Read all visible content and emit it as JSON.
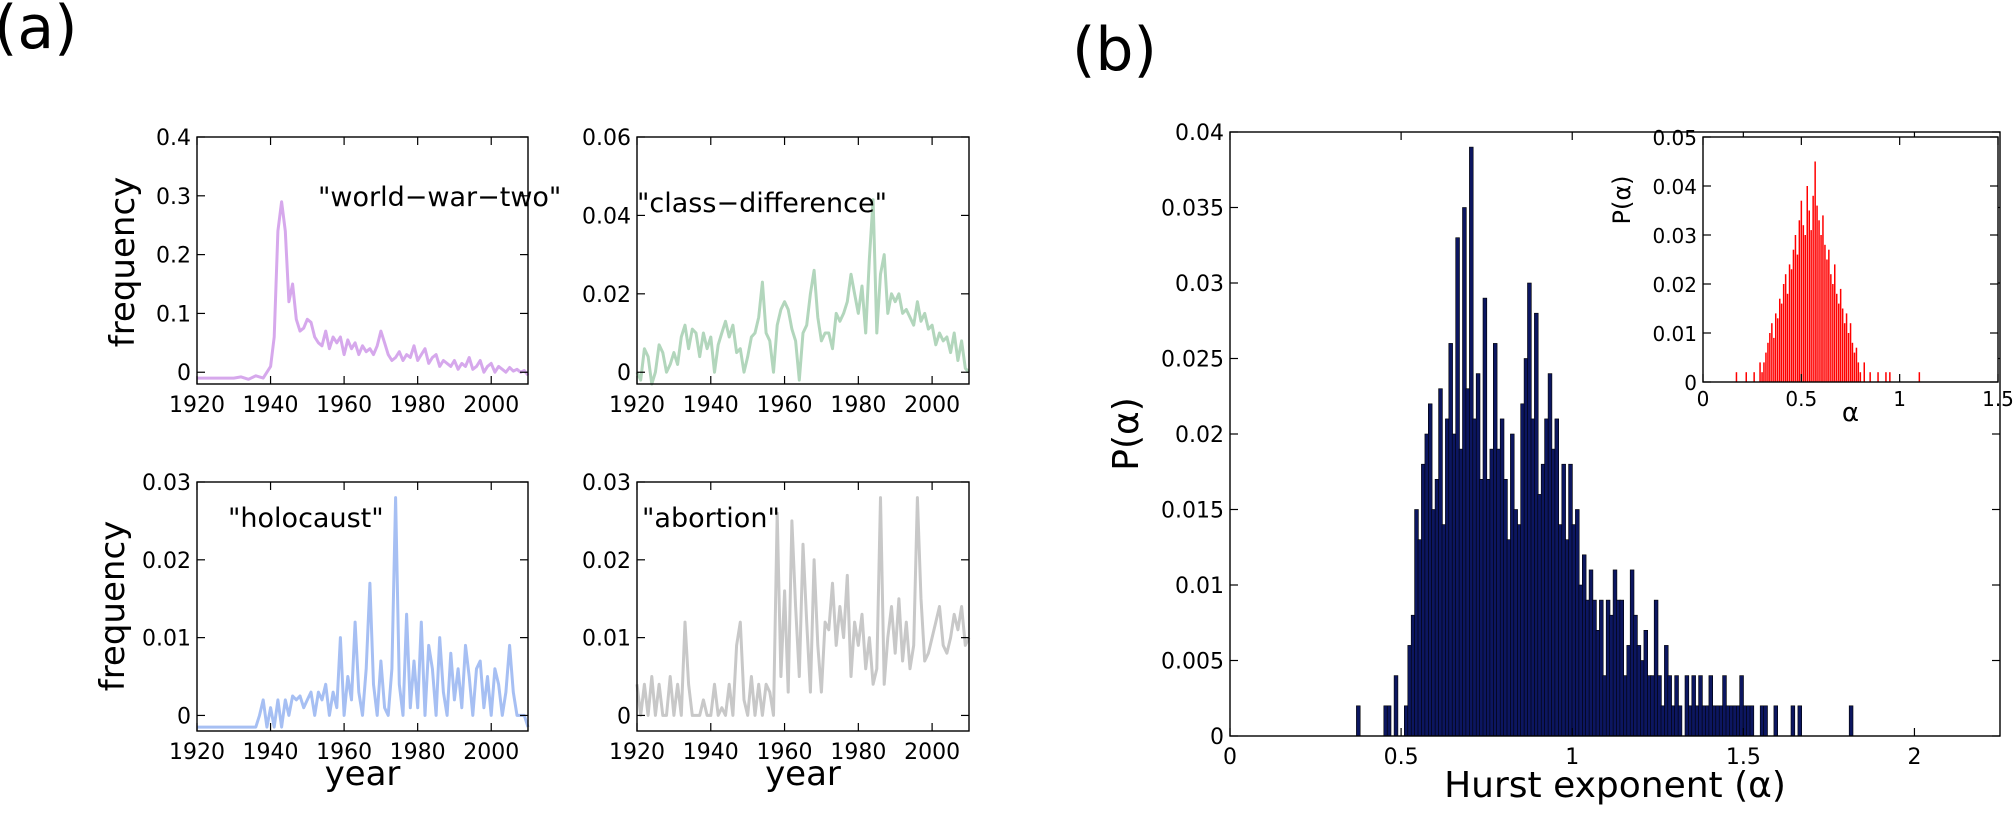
{
  "panel_labels": {
    "a": "(a)",
    "b": "(b)"
  },
  "colors": {
    "world_war_two": "#d6a8ec",
    "class_difference": "#b2d6bc",
    "holocaust": "#a6bff3",
    "abortion": "#c8c8c8",
    "hurst_hist": "#0c1660",
    "inset_hist": "#ff0000"
  },
  "chart_data": [
    {
      "id": "world-war-two",
      "type": "line",
      "annotation": "\"world−war−two\"",
      "xlabel": "",
      "ylabel": "frequency",
      "xlim": [
        1920,
        2010
      ],
      "ylim": [
        -0.02,
        0.4
      ],
      "xticks": [
        "1920",
        "1940",
        "1960",
        "1980",
        "2000"
      ],
      "yticks": [
        "0",
        "0.1",
        "0.2",
        "0.3",
        "0.4"
      ],
      "x": [
        1920,
        1922,
        1924,
        1926,
        1928,
        1930,
        1932,
        1934,
        1936,
        1938,
        1940,
        1941,
        1942,
        1943,
        1944,
        1945,
        1946,
        1947,
        1948,
        1949,
        1950,
        1951,
        1952,
        1953,
        1954,
        1955,
        1956,
        1957,
        1958,
        1959,
        1960,
        1961,
        1962,
        1963,
        1964,
        1965,
        1966,
        1967,
        1968,
        1969,
        1970,
        1971,
        1972,
        1973,
        1974,
        1975,
        1976,
        1977,
        1978,
        1979,
        1980,
        1981,
        1982,
        1983,
        1984,
        1985,
        1986,
        1987,
        1988,
        1989,
        1990,
        1991,
        1992,
        1993,
        1994,
        1995,
        1996,
        1997,
        1998,
        1999,
        2000,
        2001,
        2002,
        2003,
        2004,
        2005,
        2006,
        2007,
        2008,
        2009,
        2010
      ],
      "values": [
        -0.01,
        -0.01,
        -0.01,
        -0.01,
        -0.01,
        -0.01,
        -0.008,
        -0.012,
        -0.006,
        -0.01,
        0.01,
        0.06,
        0.24,
        0.29,
        0.24,
        0.12,
        0.15,
        0.09,
        0.07,
        0.075,
        0.09,
        0.085,
        0.06,
        0.05,
        0.045,
        0.07,
        0.04,
        0.06,
        0.05,
        0.06,
        0.03,
        0.055,
        0.04,
        0.05,
        0.03,
        0.045,
        0.035,
        0.04,
        0.03,
        0.045,
        0.07,
        0.05,
        0.03,
        0.02,
        0.025,
        0.035,
        0.02,
        0.03,
        0.025,
        0.045,
        0.02,
        0.03,
        0.04,
        0.015,
        0.025,
        0.03,
        0.01,
        0.02,
        0.015,
        0.01,
        0.02,
        0.005,
        0.015,
        0.01,
        0.025,
        0.005,
        0.01,
        0.02,
        0.0,
        0.01,
        0.015,
        0.0,
        0.01,
        0.005,
        0.0,
        0.008,
        0.002,
        0.005,
        0.0,
        0.003,
        -0.005
      ]
    },
    {
      "id": "class-difference",
      "type": "line",
      "annotation": "\"class−difference\"",
      "xlabel": "",
      "ylabel": "",
      "xlim": [
        1920,
        2010
      ],
      "ylim": [
        -0.003,
        0.06
      ],
      "xticks": [
        "1920",
        "1940",
        "1960",
        "1980",
        "2000"
      ],
      "yticks": [
        "0",
        "0.02",
        "0.04",
        "0.06"
      ],
      "x": [
        1920,
        1921,
        1922,
        1923,
        1924,
        1925,
        1926,
        1927,
        1928,
        1929,
        1930,
        1931,
        1932,
        1933,
        1934,
        1935,
        1936,
        1937,
        1938,
        1939,
        1940,
        1941,
        1942,
        1943,
        1944,
        1945,
        1946,
        1947,
        1948,
        1949,
        1950,
        1951,
        1952,
        1953,
        1954,
        1955,
        1956,
        1957,
        1958,
        1959,
        1960,
        1961,
        1962,
        1963,
        1964,
        1965,
        1966,
        1967,
        1968,
        1969,
        1970,
        1971,
        1972,
        1973,
        1974,
        1975,
        1976,
        1977,
        1978,
        1979,
        1980,
        1981,
        1982,
        1983,
        1984,
        1985,
        1986,
        1987,
        1988,
        1989,
        1990,
        1991,
        1992,
        1993,
        1994,
        1995,
        1996,
        1997,
        1998,
        1999,
        2000,
        2001,
        2002,
        2003,
        2004,
        2005,
        2006,
        2007,
        2008,
        2009,
        2010
      ],
      "values": [
        0,
        -0.002,
        0.006,
        0.004,
        -0.003,
        0.0,
        0.007,
        0.005,
        0.0,
        0.002,
        0.005,
        0.002,
        0.009,
        0.012,
        0.006,
        0.011,
        0.01,
        0.004,
        0.01,
        0.006,
        0.009,
        0.0,
        0.007,
        0.01,
        0.013,
        0.009,
        0.012,
        0.005,
        0.006,
        0.0,
        0.004,
        0.009,
        0.01,
        0.014,
        0.023,
        0.01,
        0.008,
        0.0,
        0.012,
        0.016,
        0.018,
        0.016,
        0.011,
        0.008,
        -0.002,
        0.01,
        0.012,
        0.02,
        0.026,
        0.014,
        0.008,
        0.01,
        0.01,
        0.006,
        0.015,
        0.013,
        0.015,
        0.018,
        0.025,
        0.02,
        0.015,
        0.022,
        0.01,
        0.029,
        0.044,
        0.01,
        0.025,
        0.03,
        0.015,
        0.02,
        0.018,
        0.02,
        0.015,
        0.016,
        0.014,
        0.012,
        0.018,
        0.013,
        0.015,
        0.011,
        0.012,
        0.007,
        0.01,
        0.008,
        0.009,
        0.005,
        0.01,
        0.003,
        0.008,
        0.001,
        0.0
      ]
    },
    {
      "id": "holocaust",
      "type": "line",
      "annotation": "\"holocaust\"",
      "xlabel": "year",
      "ylabel": "frequency",
      "xlim": [
        1920,
        2010
      ],
      "ylim": [
        -0.002,
        0.03
      ],
      "xticks": [
        "1920",
        "1940",
        "1960",
        "1980",
        "2000"
      ],
      "yticks": [
        "0",
        "0.01",
        "0.02",
        "0.03"
      ],
      "x": [
        1920,
        1922,
        1924,
        1926,
        1928,
        1930,
        1932,
        1934,
        1936,
        1937,
        1938,
        1939,
        1940,
        1941,
        1942,
        1943,
        1944,
        1945,
        1946,
        1947,
        1948,
        1949,
        1950,
        1951,
        1952,
        1953,
        1954,
        1955,
        1956,
        1957,
        1958,
        1959,
        1960,
        1961,
        1962,
        1963,
        1964,
        1965,
        1966,
        1967,
        1968,
        1969,
        1970,
        1971,
        1972,
        1973,
        1974,
        1975,
        1976,
        1977,
        1978,
        1979,
        1980,
        1981,
        1982,
        1983,
        1984,
        1985,
        1986,
        1987,
        1988,
        1989,
        1990,
        1991,
        1992,
        1993,
        1994,
        1995,
        1996,
        1997,
        1998,
        1999,
        2000,
        2001,
        2002,
        2003,
        2004,
        2005,
        2006,
        2007,
        2008,
        2009,
        2010
      ],
      "values": [
        -0.0015,
        -0.0015,
        -0.0015,
        -0.0015,
        -0.0015,
        -0.0015,
        -0.0015,
        -0.0015,
        -0.0015,
        0.0,
        0.002,
        -0.0015,
        0.001,
        -0.0015,
        0.002,
        -0.0015,
        0.002,
        0.0,
        0.0025,
        0.002,
        0.0025,
        0.001,
        0.002,
        0.003,
        0.0,
        0.003,
        0.002,
        0.004,
        0.0,
        0.003,
        0.001,
        0.01,
        0.0,
        0.005,
        0.002,
        0.012,
        0.003,
        0.0,
        0.006,
        0.017,
        0.004,
        0.0,
        0.007,
        0.001,
        0.0,
        0.006,
        0.028,
        0.004,
        0.0,
        0.013,
        0.001,
        0.007,
        0.001,
        0.012,
        0.0,
        0.009,
        0.006,
        0.0,
        0.01,
        0.003,
        0.0,
        0.008,
        0.002,
        0.006,
        0.001,
        0.009,
        0.005,
        0.0,
        0.006,
        0.007,
        0.001,
        0.005,
        0.0,
        0.006,
        0.004,
        0.0,
        0.003,
        0.009,
        0.003,
        0.0,
        0.0,
        0.0,
        -0.0015
      ]
    },
    {
      "id": "abortion",
      "type": "line",
      "annotation": "\"abortion\"",
      "xlabel": "year",
      "ylabel": "",
      "xlim": [
        1920,
        2010
      ],
      "ylim": [
        -0.002,
        0.03
      ],
      "xticks": [
        "1920",
        "1940",
        "1960",
        "1980",
        "2000"
      ],
      "yticks": [
        "0",
        "0.01",
        "0.02",
        "0.03"
      ],
      "x": [
        1920,
        1921,
        1922,
        1923,
        1924,
        1925,
        1926,
        1927,
        1928,
        1929,
        1930,
        1931,
        1932,
        1933,
        1934,
        1935,
        1936,
        1937,
        1938,
        1939,
        1940,
        1941,
        1942,
        1943,
        1944,
        1945,
        1946,
        1947,
        1948,
        1949,
        1950,
        1951,
        1952,
        1953,
        1954,
        1955,
        1956,
        1957,
        1958,
        1959,
        1960,
        1961,
        1962,
        1963,
        1964,
        1965,
        1966,
        1967,
        1968,
        1969,
        1970,
        1971,
        1972,
        1973,
        1974,
        1975,
        1976,
        1977,
        1978,
        1979,
        1980,
        1981,
        1982,
        1983,
        1984,
        1985,
        1986,
        1987,
        1988,
        1989,
        1990,
        1991,
        1992,
        1993,
        1994,
        1995,
        1996,
        1997,
        1998,
        1999,
        2000,
        2001,
        2002,
        2003,
        2004,
        2005,
        2006,
        2007,
        2008,
        2009,
        2010
      ],
      "values": [
        0.004,
        0.0,
        0.004,
        0.0,
        0.005,
        0.0,
        0.004,
        0.0,
        0.0,
        0.005,
        0.0,
        0.004,
        0.0,
        0.012,
        0.004,
        0.0,
        0.0,
        0.0,
        0.002,
        0.0,
        0.0,
        0.004,
        0.0,
        0.001,
        0.0,
        0.004,
        0.0,
        0.009,
        0.012,
        0.002,
        0.0,
        0.005,
        0.0,
        0.004,
        0.0,
        0.004,
        0.003,
        0.0,
        0.026,
        0.005,
        0.016,
        0.003,
        0.025,
        0.014,
        0.005,
        0.022,
        0.012,
        0.003,
        0.02,
        0.009,
        0.003,
        0.012,
        0.011,
        0.017,
        0.009,
        0.014,
        0.01,
        0.018,
        0.005,
        0.012,
        0.009,
        0.013,
        0.006,
        0.01,
        0.004,
        0.006,
        0.028,
        0.004,
        0.01,
        0.014,
        0.008,
        0.015,
        0.007,
        0.012,
        0.006,
        0.009,
        0.028,
        0.015,
        0.007,
        0.008,
        0.01,
        0.012,
        0.014,
        0.009,
        0.008,
        0.01,
        0.013,
        0.011,
        0.014,
        0.009,
        0.01
      ]
    },
    {
      "id": "hurst-histogram",
      "type": "bar",
      "xlabel": "Hurst exponent (α)",
      "ylabel": "P(α)",
      "xlim": [
        0,
        2.25
      ],
      "ylim": [
        0,
        0.04
      ],
      "xticks": [
        "0",
        "0.5",
        "1",
        "1.5",
        "2"
      ],
      "yticks": [
        "0",
        "0.005",
        "0.01",
        "0.015",
        "0.02",
        "0.025",
        "0.03",
        "0.035",
        "0.04"
      ],
      "bin_width": 0.0112,
      "x": [
        0.375,
        0.455,
        0.465,
        0.475,
        0.485,
        0.505,
        0.515,
        0.525,
        0.535,
        0.545,
        0.555,
        0.565,
        0.575,
        0.585,
        0.595,
        0.605,
        0.615,
        0.625,
        0.635,
        0.645,
        0.655,
        0.665,
        0.675,
        0.685,
        0.695,
        0.705,
        0.715,
        0.725,
        0.735,
        0.745,
        0.755,
        0.765,
        0.775,
        0.785,
        0.795,
        0.805,
        0.815,
        0.825,
        0.835,
        0.845,
        0.855,
        0.865,
        0.875,
        0.885,
        0.895,
        0.905,
        0.915,
        0.925,
        0.935,
        0.945,
        0.955,
        0.965,
        0.975,
        0.985,
        0.995,
        1.005,
        1.015,
        1.025,
        1.035,
        1.045,
        1.055,
        1.065,
        1.075,
        1.085,
        1.095,
        1.105,
        1.115,
        1.125,
        1.135,
        1.145,
        1.155,
        1.165,
        1.175,
        1.185,
        1.195,
        1.205,
        1.215,
        1.225,
        1.235,
        1.245,
        1.255,
        1.265,
        1.275,
        1.285,
        1.295,
        1.305,
        1.315,
        1.325,
        1.335,
        1.345,
        1.355,
        1.365,
        1.375,
        1.385,
        1.395,
        1.405,
        1.415,
        1.425,
        1.435,
        1.445,
        1.455,
        1.465,
        1.475,
        1.485,
        1.495,
        1.505,
        1.515,
        1.525,
        1.555,
        1.565,
        1.595,
        1.645,
        1.665,
        1.815
      ],
      "values": [
        0.002,
        0.002,
        0.002,
        0.0,
        0.004,
        0.0,
        0.002,
        0.006,
        0.008,
        0.015,
        0.013,
        0.018,
        0.02,
        0.022,
        0.015,
        0.017,
        0.023,
        0.014,
        0.021,
        0.026,
        0.02,
        0.033,
        0.019,
        0.035,
        0.023,
        0.039,
        0.021,
        0.024,
        0.017,
        0.029,
        0.017,
        0.019,
        0.026,
        0.019,
        0.021,
        0.017,
        0.013,
        0.02,
        0.015,
        0.014,
        0.022,
        0.025,
        0.03,
        0.021,
        0.028,
        0.016,
        0.018,
        0.021,
        0.024,
        0.019,
        0.021,
        0.014,
        0.018,
        0.013,
        0.018,
        0.014,
        0.015,
        0.01,
        0.012,
        0.009,
        0.011,
        0.009,
        0.007,
        0.009,
        0.004,
        0.009,
        0.008,
        0.011,
        0.009,
        0.009,
        0.004,
        0.006,
        0.011,
        0.008,
        0.006,
        0.005,
        0.007,
        0.004,
        0.004,
        0.009,
        0.004,
        0.002,
        0.006,
        0.004,
        0.002,
        0.004,
        0.002,
        0.0,
        0.004,
        0.002,
        0.004,
        0.002,
        0.004,
        0.002,
        0.002,
        0.004,
        0.002,
        0.002,
        0.002,
        0.004,
        0.002,
        0.002,
        0.002,
        0.002,
        0.004,
        0.002,
        0.002,
        0.002,
        0.002,
        0.002,
        0.002,
        0.002,
        0.002,
        0.002
      ]
    },
    {
      "id": "inset-histogram",
      "type": "bar",
      "xlabel": "α",
      "ylabel": "P(α)",
      "xlim": [
        0,
        1.5
      ],
      "ylim": [
        0,
        0.05
      ],
      "xticks": [
        "0",
        "0.5",
        "1",
        "1.5"
      ],
      "yticks": [
        "0",
        "0.01",
        "0.02",
        "0.03",
        "0.04",
        "0.05"
      ],
      "bin_width": 0.0075,
      "x": [
        0.17,
        0.22,
        0.26,
        0.29,
        0.3,
        0.31,
        0.32,
        0.33,
        0.34,
        0.35,
        0.36,
        0.37,
        0.38,
        0.39,
        0.4,
        0.41,
        0.42,
        0.43,
        0.44,
        0.45,
        0.46,
        0.47,
        0.48,
        0.49,
        0.5,
        0.51,
        0.52,
        0.53,
        0.54,
        0.55,
        0.56,
        0.57,
        0.58,
        0.59,
        0.6,
        0.61,
        0.62,
        0.63,
        0.64,
        0.65,
        0.66,
        0.67,
        0.68,
        0.69,
        0.7,
        0.71,
        0.72,
        0.73,
        0.74,
        0.75,
        0.76,
        0.77,
        0.78,
        0.79,
        0.8,
        0.82,
        0.85,
        0.89,
        0.93,
        0.95,
        1.1
      ],
      "values": [
        0.002,
        0.002,
        0.002,
        0.004,
        0.002,
        0.004,
        0.006,
        0.008,
        0.01,
        0.012,
        0.009,
        0.014,
        0.013,
        0.017,
        0.016,
        0.02,
        0.022,
        0.018,
        0.024,
        0.023,
        0.027,
        0.03,
        0.026,
        0.033,
        0.037,
        0.032,
        0.03,
        0.04,
        0.035,
        0.031,
        0.038,
        0.045,
        0.036,
        0.033,
        0.03,
        0.034,
        0.028,
        0.025,
        0.027,
        0.022,
        0.02,
        0.024,
        0.018,
        0.016,
        0.019,
        0.015,
        0.012,
        0.014,
        0.01,
        0.012,
        0.008,
        0.006,
        0.007,
        0.004,
        0.002,
        0.004,
        0.002,
        0.002,
        0.002,
        0.002,
        0.002
      ]
    }
  ]
}
